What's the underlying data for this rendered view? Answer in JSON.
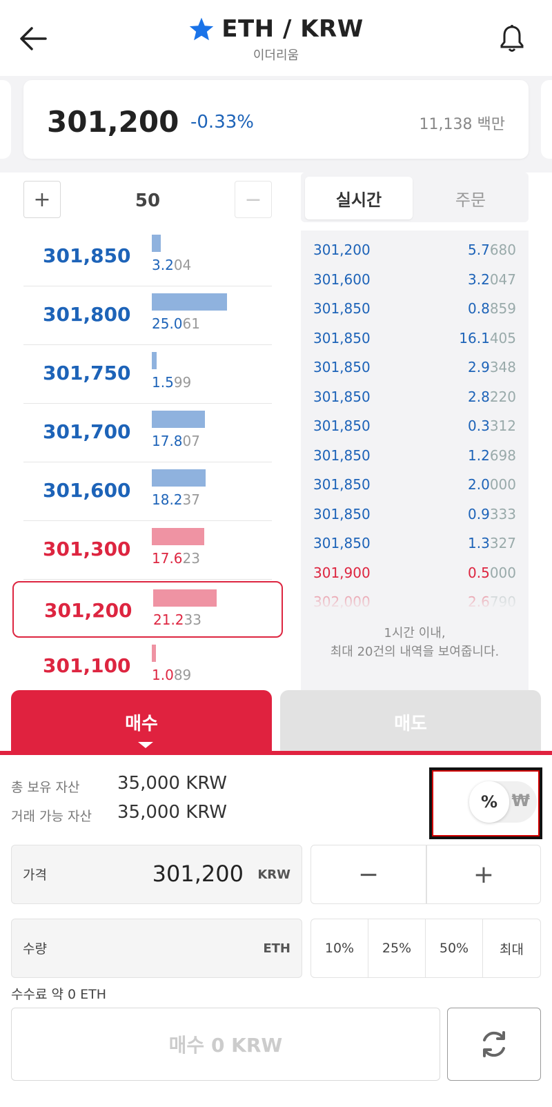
{
  "header": {
    "title": "ETH / KRW",
    "subtitle": "이더리움",
    "star_color": "#1a73e8"
  },
  "ticker": {
    "price": "301,200",
    "change": "-0.33%",
    "volume": "11,138 백만"
  },
  "quantity_control": {
    "plus": "+",
    "value": "50",
    "minus": "−"
  },
  "orderbook": [
    {
      "price": "301,850",
      "qty_main": "3.2",
      "qty_dim": "04",
      "side": "ask",
      "bar_fraction": 0.12
    },
    {
      "price": "301,800",
      "qty_main": "25.0",
      "qty_dim": "61",
      "side": "ask",
      "bar_fraction": 0.97
    },
    {
      "price": "301,750",
      "qty_main": "1.5",
      "qty_dim": "99",
      "side": "ask",
      "bar_fraction": 0.06
    },
    {
      "price": "301,700",
      "qty_main": "17.8",
      "qty_dim": "07",
      "side": "ask",
      "bar_fraction": 0.69
    },
    {
      "price": "301,600",
      "qty_main": "18.2",
      "qty_dim": "37",
      "side": "ask",
      "bar_fraction": 0.7
    },
    {
      "price": "301,300",
      "qty_main": "17.6",
      "qty_dim": "23",
      "side": "bid",
      "bar_fraction": 0.68
    },
    {
      "price": "301,200",
      "qty_main": "21.2",
      "qty_dim": "33",
      "side": "bid",
      "bar_fraction": 0.82,
      "selected": true
    },
    {
      "price": "301,100",
      "qty_main": "1.0",
      "qty_dim": "89",
      "side": "bid",
      "bar_fraction": 0.04
    }
  ],
  "trade_tabs": {
    "realtime": "실시간",
    "orders": "주문"
  },
  "trades": [
    {
      "price": "301,200",
      "qty_main": "5.7",
      "qty_dim": "680",
      "side": "ask"
    },
    {
      "price": "301,600",
      "qty_main": "3.2",
      "qty_dim": "047",
      "side": "ask"
    },
    {
      "price": "301,850",
      "qty_main": "0.8",
      "qty_dim": "859",
      "side": "ask"
    },
    {
      "price": "301,850",
      "qty_main": "16.1",
      "qty_dim": "405",
      "side": "ask"
    },
    {
      "price": "301,850",
      "qty_main": "2.9",
      "qty_dim": "348",
      "side": "ask"
    },
    {
      "price": "301,850",
      "qty_main": "2.8",
      "qty_dim": "220",
      "side": "ask"
    },
    {
      "price": "301,850",
      "qty_main": "0.3",
      "qty_dim": "312",
      "side": "ask"
    },
    {
      "price": "301,850",
      "qty_main": "1.2",
      "qty_dim": "698",
      "side": "ask"
    },
    {
      "price": "301,850",
      "qty_main": "2.0",
      "qty_dim": "000",
      "side": "ask"
    },
    {
      "price": "301,850",
      "qty_main": "0.9",
      "qty_dim": "333",
      "side": "ask"
    },
    {
      "price": "301,850",
      "qty_main": "1.3",
      "qty_dim": "327",
      "side": "ask"
    },
    {
      "price": "301,900",
      "qty_main": "0.5",
      "qty_dim": "000",
      "side": "bid"
    },
    {
      "price": "302,000",
      "qty_main": "2.6",
      "qty_dim": "790",
      "side": "bid"
    }
  ],
  "trades_note": {
    "line1": "1시간 이내,",
    "line2": "최대 20건의 내역을 보여줍니다."
  },
  "side_tabs": {
    "buy": "매수",
    "sell": "매도"
  },
  "assets": {
    "total_label": "총 보유 자산",
    "total_value": "35,000 KRW",
    "available_label": "거래 가능 자산",
    "available_value": "35,000 KRW"
  },
  "unit_toggle": {
    "percent": "%",
    "won": "₩"
  },
  "price_field": {
    "label": "가격",
    "value": "301,200",
    "unit": "KRW"
  },
  "price_stepper": {
    "minus": "−",
    "plus": "+"
  },
  "amount_field": {
    "label": "수량",
    "value": "",
    "unit": "ETH"
  },
  "percent_buttons": [
    "10%",
    "25%",
    "50%",
    "최대"
  ],
  "fee": "수수료 약 0 ETH",
  "submit_label": "매수 0 KRW",
  "colors": {
    "ask_blue": "#1d63b8",
    "bid_red": "#dd2540",
    "buy_tab": "#e0223f"
  }
}
